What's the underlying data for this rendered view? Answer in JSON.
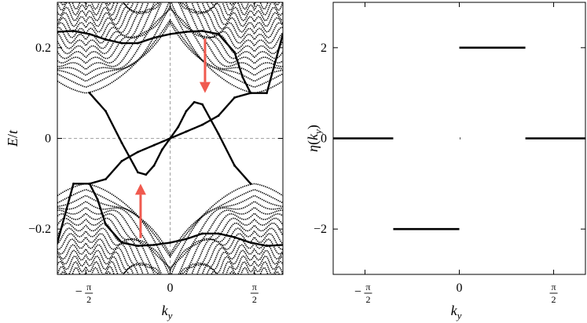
{
  "chart_data": [
    {
      "type": "scatter",
      "panel": "left",
      "xlabel": {
        "main": "k",
        "sub": "y"
      },
      "ylabel": {
        "main": "E",
        "sep": "/",
        "tail": "t"
      },
      "xlim": [
        -2.1,
        2.1
      ],
      "ylim": [
        -0.3,
        0.3
      ],
      "xticks": [
        {
          "value": -1.5708,
          "sign": "−",
          "num": "π",
          "den": "2"
        },
        {
          "value": 0,
          "text": "0"
        },
        {
          "value": 1.5708,
          "sign": "",
          "num": "π",
          "den": "2"
        }
      ],
      "yticks": [
        {
          "value": 0.2,
          "text": "0.2"
        },
        {
          "value": 0,
          "text": "0"
        },
        {
          "value": -0.2,
          "text": "−0.2"
        }
      ],
      "reference_lines": {
        "x": 0,
        "y": 0,
        "style": "dashed",
        "color": "#888888"
      },
      "bulk_bands": {
        "count": 16,
        "gap_center_k": 1.5708,
        "min_gap_E": 0.1,
        "max_E": 0.3
      },
      "series": [
        {
          "points": [
            [
              -2.1,
              0.235
            ],
            [
              -1.8,
              0.237
            ],
            [
              -1.5,
              0.23
            ],
            [
              -1.2,
              0.218
            ],
            [
              -0.9,
              0.21
            ],
            [
              -0.6,
              0.21
            ],
            [
              -0.3,
              0.222
            ],
            [
              0,
              0.23
            ],
            [
              0.3,
              0.235
            ],
            [
              0.6,
              0.237
            ],
            [
              0.9,
              0.23
            ],
            [
              1.2,
              0.19
            ],
            [
              1.35,
              0.135
            ],
            [
              1.5,
              0.1
            ],
            [
              1.8,
              0.1
            ],
            [
              2.1,
              0.23
            ]
          ]
        },
        {
          "points": [
            [
              -1.5,
              0.1
            ],
            [
              -1.2,
              0.06
            ],
            [
              -0.9,
              -0.01
            ],
            [
              -0.6,
              -0.075
            ],
            [
              -0.45,
              -0.08
            ],
            [
              -0.3,
              -0.06
            ],
            [
              -0.15,
              -0.025
            ],
            [
              0,
              0
            ],
            [
              0.15,
              0.025
            ],
            [
              0.3,
              0.06
            ],
            [
              0.45,
              0.08
            ],
            [
              0.6,
              0.075
            ],
            [
              0.9,
              0.01
            ],
            [
              1.2,
              -0.06
            ],
            [
              1.5,
              -0.1
            ]
          ]
        },
        {
          "points": [
            [
              -1.5,
              -0.1
            ],
            [
              -1.2,
              -0.09
            ],
            [
              -0.9,
              -0.05
            ],
            [
              -0.6,
              -0.03
            ],
            [
              -0.3,
              -0.015
            ],
            [
              0,
              0
            ],
            [
              0.3,
              0.015
            ],
            [
              0.6,
              0.03
            ],
            [
              0.9,
              0.05
            ],
            [
              1.2,
              0.09
            ],
            [
              1.5,
              0.1
            ]
          ]
        },
        {
          "points": [
            [
              -2.1,
              -0.23
            ],
            [
              -1.8,
              -0.1
            ],
            [
              -1.5,
              -0.1
            ],
            [
              -1.35,
              -0.135
            ],
            [
              -1.2,
              -0.19
            ],
            [
              -0.9,
              -0.23
            ],
            [
              -0.6,
              -0.237
            ],
            [
              -0.3,
              -0.235
            ],
            [
              0,
              -0.23
            ],
            [
              0.3,
              -0.222
            ],
            [
              0.6,
              -0.21
            ],
            [
              0.9,
              -0.21
            ],
            [
              1.2,
              -0.218
            ],
            [
              1.5,
              -0.23
            ],
            [
              1.8,
              -0.237
            ],
            [
              2.1,
              -0.235
            ]
          ]
        }
      ],
      "annotations": [
        {
          "type": "arrow",
          "direction": "down",
          "x": 0.65,
          "y_from": 0.22,
          "y_to": 0.1,
          "color": "#f05a4f"
        },
        {
          "type": "arrow",
          "direction": "up",
          "x": -0.55,
          "y_from": -0.22,
          "y_to": -0.1,
          "color": "#f05a4f"
        }
      ]
    },
    {
      "type": "line",
      "panel": "right",
      "xlabel": {
        "main": "k",
        "sub": "y"
      },
      "ylabel": {
        "main": "η",
        "arg": "k",
        "argsub": "y"
      },
      "xlim": [
        -2.1,
        2.1
      ],
      "ylim": [
        -3,
        3
      ],
      "xticks": [
        {
          "value": -1.5708,
          "sign": "−",
          "num": "π",
          "den": "2"
        },
        {
          "value": 0,
          "text": "0"
        },
        {
          "value": 1.5708,
          "sign": "",
          "num": "π",
          "den": "2"
        }
      ],
      "yticks": [
        {
          "value": 2,
          "text": "2"
        },
        {
          "value": 0,
          "text": "0"
        },
        {
          "value": -2,
          "text": "−2"
        }
      ],
      "segments": [
        {
          "x": [
            -2.1,
            -1.1
          ],
          "y": 0
        },
        {
          "x": [
            -1.1,
            0
          ],
          "y": -2
        },
        {
          "x": [
            0.01,
            0.02
          ],
          "y": 0
        },
        {
          "x": [
            0,
            1.1
          ],
          "y": 2
        },
        {
          "x": [
            1.1,
            2.1
          ],
          "y": 0
        }
      ]
    }
  ]
}
